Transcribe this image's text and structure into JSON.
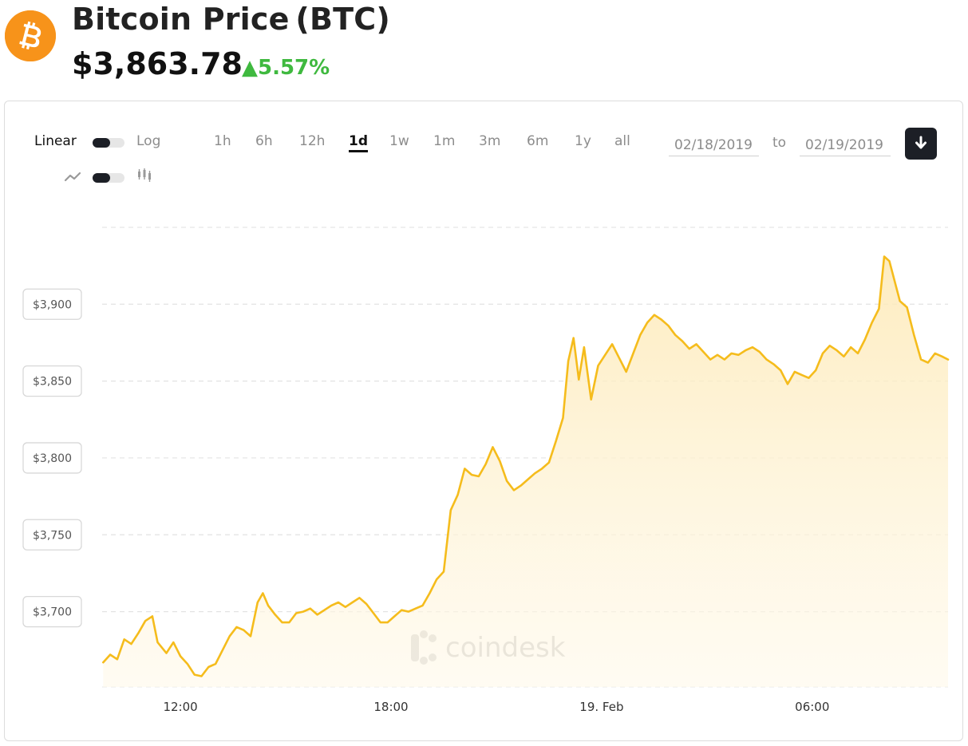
{
  "header": {
    "title": "Bitcoin Price (BTC)",
    "price": "$3,863.78",
    "change": "▲5.57%"
  },
  "controls": {
    "linear_label": "Linear",
    "log_label": "Log",
    "ranges": [
      "1h",
      "6h",
      "12h",
      "1d",
      "1w",
      "1m",
      "3m",
      "6m",
      "1y",
      "all"
    ],
    "active_range": "1d",
    "from_date": "02/18/2019",
    "to_label": "to",
    "to_date": "02/19/2019"
  },
  "watermark": "coindesk",
  "colors": {
    "brand": "#f7931a",
    "line": "#f5bc1c",
    "positive": "#3fb93f",
    "dark": "#1c1f26"
  },
  "icons": {
    "logo": "bitcoin-icon",
    "line_mode": "line-chart-icon",
    "candle_mode": "candlestick-icon",
    "download": "download-arrow-icon"
  },
  "chart_data": {
    "type": "area",
    "y_ticks": [
      {
        "value": 3700,
        "label": "$3,700"
      },
      {
        "value": 3750,
        "label": "$3,750"
      },
      {
        "value": 3800,
        "label": "$3,800"
      },
      {
        "value": 3850,
        "label": "$3,850"
      },
      {
        "value": 3900,
        "label": "$3,900"
      }
    ],
    "x_ticks": [
      {
        "value": 12,
        "label": "12:00"
      },
      {
        "value": 18,
        "label": "18:00"
      },
      {
        "value": 24,
        "label": "19. Feb"
      },
      {
        "value": 30,
        "label": "06:00"
      }
    ],
    "xlim": [
      9.77,
      33.87
    ],
    "ylim": [
      3651,
      3951
    ],
    "ylabel": "",
    "xlabel": "",
    "grid": true,
    "x_unit": "hours from 00:00 on 02/18/2019",
    "series": [
      {
        "values": [
          [
            9.8,
            3667
          ],
          [
            10.0,
            3672
          ],
          [
            10.2,
            3669
          ],
          [
            10.4,
            3682
          ],
          [
            10.6,
            3679
          ],
          [
            10.8,
            3686
          ],
          [
            11.0,
            3694
          ],
          [
            11.2,
            3697
          ],
          [
            11.35,
            3680
          ],
          [
            11.6,
            3673
          ],
          [
            11.8,
            3680
          ],
          [
            12.0,
            3671
          ],
          [
            12.2,
            3666
          ],
          [
            12.4,
            3659
          ],
          [
            12.6,
            3658
          ],
          [
            12.8,
            3664
          ],
          [
            13.0,
            3666
          ],
          [
            13.2,
            3675
          ],
          [
            13.4,
            3684
          ],
          [
            13.6,
            3690
          ],
          [
            13.8,
            3688
          ],
          [
            14.0,
            3684
          ],
          [
            14.2,
            3706
          ],
          [
            14.35,
            3712
          ],
          [
            14.5,
            3704
          ],
          [
            14.7,
            3698
          ],
          [
            14.9,
            3693
          ],
          [
            15.1,
            3693
          ],
          [
            15.3,
            3699
          ],
          [
            15.5,
            3700
          ],
          [
            15.7,
            3702
          ],
          [
            15.9,
            3698
          ],
          [
            16.1,
            3701
          ],
          [
            16.3,
            3704
          ],
          [
            16.5,
            3706
          ],
          [
            16.7,
            3703
          ],
          [
            16.9,
            3706
          ],
          [
            17.1,
            3709
          ],
          [
            17.3,
            3705
          ],
          [
            17.5,
            3699
          ],
          [
            17.7,
            3693
          ],
          [
            17.9,
            3693
          ],
          [
            18.1,
            3697
          ],
          [
            18.3,
            3701
          ],
          [
            18.5,
            3700
          ],
          [
            18.7,
            3702
          ],
          [
            18.9,
            3704
          ],
          [
            19.1,
            3712
          ],
          [
            19.3,
            3721
          ],
          [
            19.5,
            3726
          ],
          [
            19.7,
            3766
          ],
          [
            19.9,
            3776
          ],
          [
            20.1,
            3793
          ],
          [
            20.3,
            3789
          ],
          [
            20.5,
            3788
          ],
          [
            20.7,
            3796
          ],
          [
            20.9,
            3807
          ],
          [
            21.1,
            3798
          ],
          [
            21.3,
            3785
          ],
          [
            21.5,
            3779
          ],
          [
            21.7,
            3782
          ],
          [
            21.9,
            3786
          ],
          [
            22.1,
            3790
          ],
          [
            22.3,
            3793
          ],
          [
            22.5,
            3797
          ],
          [
            22.7,
            3811
          ],
          [
            22.9,
            3826
          ],
          [
            23.05,
            3863
          ],
          [
            23.2,
            3878
          ],
          [
            23.35,
            3851
          ],
          [
            23.5,
            3872
          ],
          [
            23.7,
            3838
          ],
          [
            23.9,
            3860
          ],
          [
            24.1,
            3867
          ],
          [
            24.3,
            3874
          ],
          [
            24.5,
            3865
          ],
          [
            24.7,
            3856
          ],
          [
            24.9,
            3868
          ],
          [
            25.1,
            3880
          ],
          [
            25.3,
            3888
          ],
          [
            25.5,
            3893
          ],
          [
            25.7,
            3890
          ],
          [
            25.9,
            3886
          ],
          [
            26.1,
            3880
          ],
          [
            26.3,
            3876
          ],
          [
            26.5,
            3871
          ],
          [
            26.7,
            3874
          ],
          [
            26.9,
            3869
          ],
          [
            27.1,
            3864
          ],
          [
            27.3,
            3867
          ],
          [
            27.5,
            3864
          ],
          [
            27.7,
            3868
          ],
          [
            27.9,
            3867
          ],
          [
            28.1,
            3870
          ],
          [
            28.3,
            3872
          ],
          [
            28.5,
            3869
          ],
          [
            28.7,
            3864
          ],
          [
            28.9,
            3861
          ],
          [
            29.1,
            3857
          ],
          [
            29.3,
            3848
          ],
          [
            29.5,
            3856
          ],
          [
            29.7,
            3854
          ],
          [
            29.9,
            3852
          ],
          [
            30.1,
            3857
          ],
          [
            30.3,
            3868
          ],
          [
            30.5,
            3873
          ],
          [
            30.7,
            3870
          ],
          [
            30.9,
            3866
          ],
          [
            31.1,
            3872
          ],
          [
            31.3,
            3868
          ],
          [
            31.5,
            3877
          ],
          [
            31.7,
            3888
          ],
          [
            31.9,
            3897
          ],
          [
            32.05,
            3931
          ],
          [
            32.2,
            3928
          ],
          [
            32.35,
            3915
          ],
          [
            32.5,
            3902
          ],
          [
            32.7,
            3898
          ],
          [
            32.9,
            3880
          ],
          [
            33.1,
            3864
          ],
          [
            33.3,
            3862
          ],
          [
            33.5,
            3868
          ],
          [
            33.7,
            3866
          ],
          [
            33.87,
            3864
          ]
        ]
      }
    ]
  }
}
